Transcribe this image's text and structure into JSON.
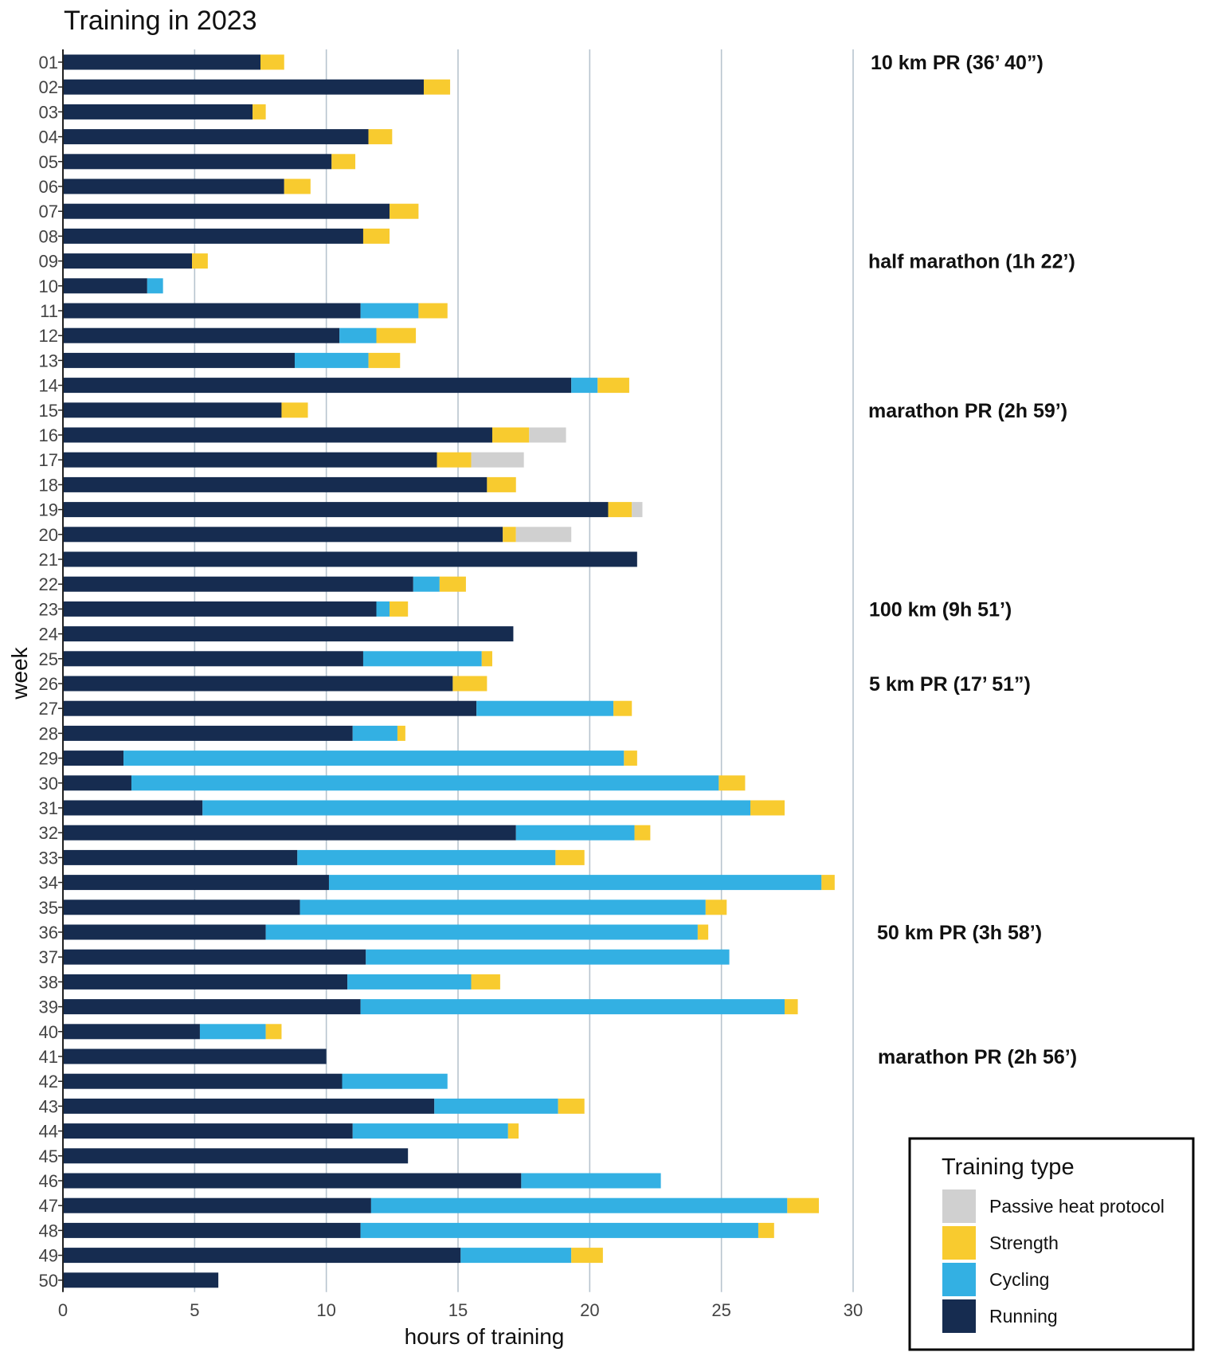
{
  "chart_data": {
    "type": "bar",
    "orientation": "horizontal",
    "stacked": true,
    "title": "Training in 2023",
    "xlabel": "hours of training",
    "ylabel": "week",
    "xlim": [
      0,
      30
    ],
    "xticks": [
      "0",
      "5",
      "10",
      "15",
      "20",
      "25",
      "30"
    ],
    "grid": "vertical",
    "legend_position": "bottom-right",
    "legend_title": "Training type",
    "legend_entries": [
      "Passive heat protocol",
      "Strength",
      "Cycling",
      "Running"
    ],
    "colors": {
      "Running": "#162c50",
      "Cycling": "#33b0e3",
      "Strength": "#f8cb2f",
      "Passive heat protocol": "#d0d0d0"
    },
    "categories": [
      "01",
      "02",
      "03",
      "04",
      "05",
      "06",
      "07",
      "08",
      "09",
      "10",
      "11",
      "12",
      "13",
      "14",
      "15",
      "16",
      "17",
      "18",
      "19",
      "20",
      "21",
      "22",
      "23",
      "24",
      "25",
      "26",
      "27",
      "28",
      "29",
      "30",
      "31",
      "32",
      "33",
      "34",
      "35",
      "36",
      "37",
      "38",
      "39",
      "40",
      "41",
      "42",
      "43",
      "44",
      "45",
      "46",
      "47",
      "48",
      "49",
      "50"
    ],
    "series": [
      {
        "name": "Running",
        "values": [
          7.5,
          13.7,
          7.2,
          11.6,
          10.2,
          8.4,
          12.4,
          11.4,
          4.9,
          3.2,
          11.3,
          10.5,
          8.8,
          19.3,
          8.3,
          16.3,
          14.2,
          16.1,
          20.7,
          16.7,
          21.8,
          13.3,
          11.9,
          17.1,
          11.4,
          14.8,
          15.7,
          11.0,
          2.3,
          2.6,
          5.3,
          17.2,
          8.9,
          10.1,
          9.0,
          7.7,
          11.5,
          10.8,
          11.3,
          5.2,
          10.0,
          10.6,
          14.1,
          11.0,
          13.1,
          17.4,
          11.7,
          11.3,
          15.1,
          5.9
        ]
      },
      {
        "name": "Cycling",
        "values": [
          0,
          0,
          0,
          0,
          0,
          0,
          0,
          0,
          0,
          0.6,
          2.2,
          1.4,
          2.8,
          1.0,
          0,
          0,
          0,
          0,
          0,
          0,
          0,
          1.0,
          0.5,
          0,
          4.5,
          0,
          5.2,
          1.7,
          19.0,
          22.3,
          20.8,
          4.5,
          9.8,
          18.7,
          15.4,
          16.4,
          13.8,
          4.7,
          16.1,
          2.5,
          0,
          4.0,
          4.7,
          5.9,
          0,
          5.3,
          15.8,
          15.1,
          4.2,
          0
        ]
      },
      {
        "name": "Strength",
        "values": [
          0.9,
          1.0,
          0.5,
          0.9,
          0.9,
          1.0,
          1.1,
          1.0,
          0.6,
          0,
          1.1,
          1.5,
          1.2,
          1.2,
          1.0,
          1.4,
          1.3,
          1.1,
          0.9,
          0.5,
          0,
          1.0,
          0.7,
          0,
          0.4,
          1.3,
          0.7,
          0.3,
          0.5,
          1.0,
          1.3,
          0.6,
          1.1,
          0.5,
          0.8,
          0.4,
          0,
          1.1,
          0.5,
          0.6,
          0,
          0,
          1.0,
          0.4,
          0,
          0,
          1.2,
          0.6,
          1.2,
          0
        ]
      },
      {
        "name": "Passive heat protocol",
        "values": [
          0,
          0,
          0,
          0,
          0,
          0,
          0,
          0,
          0,
          0,
          0,
          0,
          0,
          0,
          0,
          1.4,
          2.0,
          0,
          0.4,
          2.1,
          0,
          0,
          0,
          0,
          0,
          0,
          0,
          0,
          0,
          0,
          0,
          0,
          0,
          0,
          0,
          0,
          0,
          0,
          0,
          0,
          0,
          0,
          0,
          0,
          0,
          0,
          0,
          0,
          0,
          0
        ]
      }
    ],
    "annotations": [
      {
        "text": "10 km PR (36’ 40”)",
        "week": "01"
      },
      {
        "text": "half marathon (1h 22’)",
        "week": "09"
      },
      {
        "text": "marathon PR (2h 59’)",
        "week": "15"
      },
      {
        "text": "100 km (9h 51’)",
        "week": "23"
      },
      {
        "text": "5 km PR (17’ 51”)",
        "week": "26"
      },
      {
        "text": "50 km PR (3h 58’)",
        "week": "36"
      },
      {
        "text": "marathon PR (2h 56’)",
        "week": "41"
      }
    ]
  }
}
